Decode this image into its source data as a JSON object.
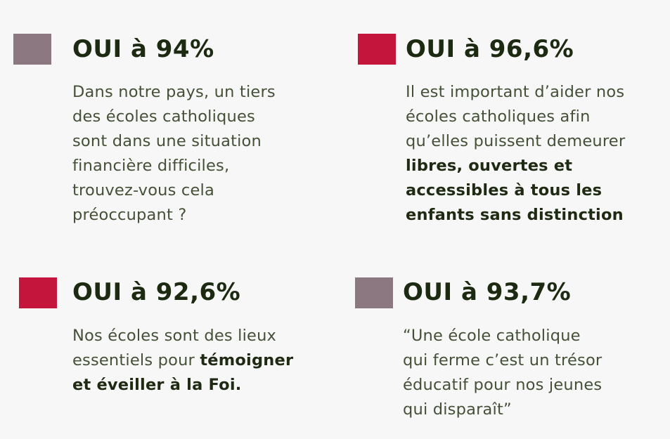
{
  "colors": {
    "grey_swatch": "#8b7880",
    "red_swatch": "#c4163c",
    "heading": "#1c2a12",
    "body_text": "#445137"
  },
  "cards": [
    {
      "swatch": "grey",
      "heading": "OUI à 94%",
      "lines": [
        {
          "text": "Dans notre pays, un tiers",
          "bold": false
        },
        {
          "text": "des écoles catholiques",
          "bold": false
        },
        {
          "text": "sont dans une situation",
          "bold": false
        },
        {
          "text": "financière difficiles,",
          "bold": false
        },
        {
          "text": "trouvez-vous cela",
          "bold": false
        },
        {
          "text": "préoccupant ?",
          "bold": false
        }
      ]
    },
    {
      "swatch": "red",
      "heading": "OUI à 96,6%",
      "lines": [
        {
          "text": "Il est important d’aider nos",
          "bold": false
        },
        {
          "text": "écoles catholiques afin",
          "bold": false
        },
        {
          "text": "qu’elles puissent demeurer",
          "bold": false
        },
        {
          "text": "libres, ouvertes et",
          "bold": true
        },
        {
          "text": "accessibles à tous les",
          "bold": true
        },
        {
          "text": "enfants sans distinction",
          "bold": true
        }
      ]
    },
    {
      "swatch": "red",
      "heading": "OUI à 92,6%",
      "line1_normal": "Nos écoles sont des lieux",
      "line2_normal": "essentiels pour ",
      "line2_bold": "témoigner",
      "line3_bold": "et éveiller à la Foi."
    },
    {
      "swatch": "grey",
      "heading": "OUI à 93,7%",
      "lines": [
        {
          "text": "“Une école catholique",
          "bold": false
        },
        {
          "text": "qui ferme c’est un trésor",
          "bold": false
        },
        {
          "text": "éducatif pour nos jeunes",
          "bold": false
        },
        {
          "text": "qui disparaît”",
          "bold": false
        }
      ]
    }
  ]
}
